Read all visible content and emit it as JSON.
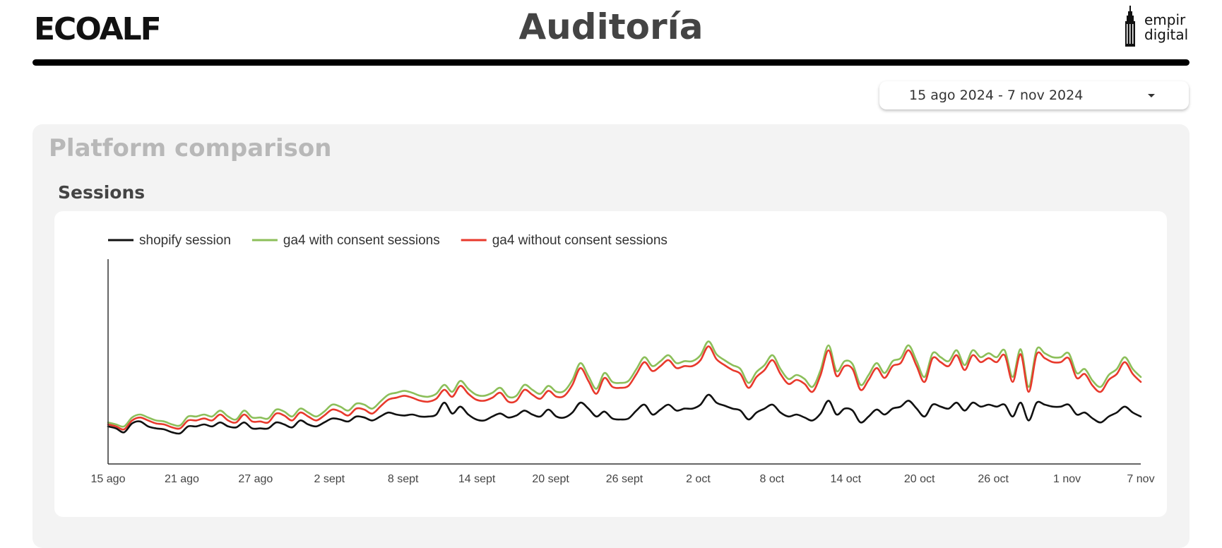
{
  "header": {
    "brand_logo": "ECOALF",
    "title": "Auditoría",
    "partner_logo_line1": "empir",
    "partner_logo_line2": "digital"
  },
  "date_range": {
    "label": "15 ago 2024 - 7 nov 2024",
    "icon": "caret-down-icon"
  },
  "panel": {
    "title": "Platform comparison",
    "section_title": "Sessions"
  },
  "colors": {
    "shopify": "#111111",
    "ga4_with": "#8cbf5a",
    "ga4_without": "#e8392c"
  },
  "chart_data": {
    "type": "line",
    "x_tick_labels": [
      "15 ago",
      "21 ago",
      "27 ago",
      "2 sept",
      "8 sept",
      "14 sept",
      "20 sept",
      "26 sept",
      "2 oct",
      "8 oct",
      "14 oct",
      "20 oct",
      "26 oct",
      "1 nov",
      "7 nov"
    ],
    "x_start": "15 ago",
    "x_end": "7 nov",
    "y_axis_labels": false,
    "grid": false,
    "legend_position": "top-left",
    "series": [
      {
        "name": "shopify session",
        "color": "#111111",
        "values": [
          38,
          36,
          32,
          41,
          43,
          38,
          36,
          35,
          32,
          31,
          38,
          38,
          40,
          38,
          42,
          38,
          37,
          42,
          36,
          36,
          36,
          42,
          40,
          37,
          44,
          40,
          38,
          42,
          46,
          45,
          43,
          48,
          47,
          44,
          48,
          52,
          50,
          49,
          50,
          48,
          48,
          50,
          62,
          51,
          58,
          50,
          45,
          44,
          48,
          51,
          47,
          49,
          54,
          50,
          48,
          55,
          48,
          47,
          52,
          62,
          56,
          48,
          53,
          46,
          45,
          46,
          54,
          60,
          50,
          55,
          60,
          54,
          56,
          56,
          60,
          70,
          62,
          59,
          56,
          54,
          45,
          52,
          56,
          60,
          52,
          48,
          50,
          47,
          44,
          51,
          64,
          50,
          56,
          54,
          42,
          48,
          55,
          50,
          56,
          58,
          64,
          56,
          48,
          60,
          58,
          56,
          62,
          54,
          62,
          58,
          60,
          58,
          60,
          48,
          62,
          44,
          62,
          60,
          58,
          58,
          60,
          50,
          52,
          46,
          42,
          48,
          52,
          58,
          52,
          48
        ]
      },
      {
        "name": "ga4 with consent sessions",
        "color": "#8cbf5a",
        "values": [
          42,
          40,
          38,
          47,
          50,
          47,
          44,
          43,
          40,
          39,
          48,
          48,
          50,
          48,
          54,
          48,
          45,
          54,
          47,
          47,
          46,
          55,
          53,
          48,
          56,
          52,
          48,
          53,
          60,
          58,
          54,
          61,
          60,
          56,
          63,
          70,
          72,
          74,
          72,
          69,
          68,
          71,
          80,
          73,
          84,
          76,
          70,
          69,
          72,
          77,
          68,
          69,
          80,
          75,
          71,
          79,
          73,
          74,
          85,
          102,
          89,
          76,
          92,
          83,
          82,
          84,
          96,
          108,
          99,
          104,
          110,
          102,
          104,
          104,
          110,
          124,
          111,
          105,
          100,
          96,
          82,
          93,
          100,
          110,
          96,
          86,
          90,
          86,
          78,
          95,
          120,
          94,
          104,
          101,
          80,
          90,
          102,
          92,
          104,
          107,
          120,
          104,
          88,
          112,
          108,
          104,
          115,
          100,
          115,
          108,
          112,
          108,
          115,
          88,
          116,
          78,
          116,
          112,
          108,
          108,
          112,
          92,
          96,
          84,
          78,
          90,
          96,
          108,
          96,
          88
        ]
      },
      {
        "name": "ga4 without consent sessions",
        "color": "#e8392c",
        "values": [
          40,
          38,
          35,
          44,
          47,
          44,
          41,
          40,
          37,
          36,
          44,
          44,
          46,
          44,
          50,
          44,
          42,
          50,
          43,
          43,
          42,
          51,
          49,
          44,
          52,
          48,
          44,
          49,
          55,
          53,
          49,
          56,
          55,
          51,
          58,
          65,
          67,
          69,
          67,
          64,
          63,
          66,
          75,
          68,
          79,
          71,
          65,
          64,
          67,
          72,
          63,
          64,
          75,
          70,
          66,
          74,
          68,
          69,
          80,
          97,
          84,
          71,
          87,
          78,
          77,
          79,
          91,
          103,
          94,
          99,
          105,
          97,
          99,
          99,
          105,
          119,
          106,
          100,
          95,
          91,
          77,
          88,
          95,
          105,
          91,
          81,
          85,
          81,
          73,
          90,
          115,
          89,
          99,
          96,
          75,
          85,
          97,
          87,
          99,
          102,
          115,
          99,
          83,
          107,
          103,
          99,
          110,
          95,
          110,
          103,
          107,
          103,
          110,
          83,
          111,
          73,
          111,
          107,
          103,
          103,
          107,
          87,
          91,
          79,
          73,
          85,
          91,
          103,
          91,
          83
        ]
      }
    ]
  }
}
